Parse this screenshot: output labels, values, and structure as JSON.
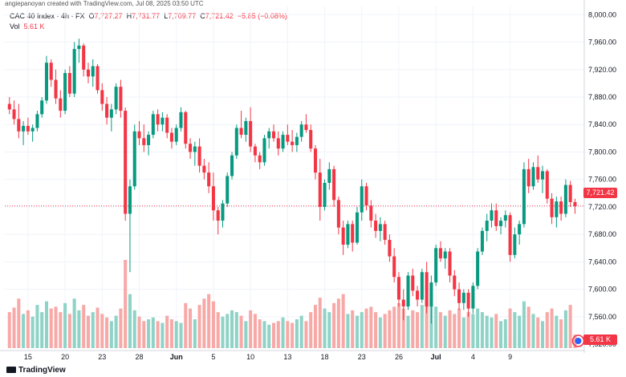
{
  "credit": "angiepanoyan created with TradingView.com, Jul 08, 2025 03:50 UTC",
  "legend": {
    "symbol": "CAC 40 Index · 4h · FX",
    "open_label": "O",
    "open": "7,727.27",
    "high_label": "H",
    "high": "7,731.77",
    "low_label": "L",
    "low": "7,709.77",
    "close_label": "C",
    "close": "7,721.42",
    "change": "−5.85 (−0.08%)",
    "vol_label": "Vol",
    "vol": "5.61 K"
  },
  "price_tag": "7,721.42",
  "vol_tag": "5.61 K",
  "watermark": "TradingView",
  "colors": {
    "up": "#089981",
    "down": "#f23645",
    "up_vol": "#8fd3c7",
    "down_vol": "#f7a9a7"
  },
  "chart_data": {
    "type": "candlestick",
    "title": "CAC 40 Index · 4h · FX",
    "ylim": [
      7512,
      8012
    ],
    "y_ticks": [
      "8,000.00",
      "7,960.00",
      "7,920.00",
      "7,880.00",
      "7,840.00",
      "7,800.00",
      "7,760.00",
      "7,720.00",
      "7,680.00",
      "7,640.00",
      "7,600.00",
      "7,560.00",
      "7,520.00"
    ],
    "y_tick_values": [
      8000,
      7960,
      7920,
      7880,
      7840,
      7800,
      7760,
      7720,
      7680,
      7640,
      7600,
      7560,
      7520
    ],
    "x_tick_labels": [
      "15",
      "20",
      "23",
      "28",
      "Jun",
      "5",
      "10",
      "13",
      "18",
      "23",
      "26",
      "Jul",
      "4",
      "9"
    ],
    "x_tick_index": [
      4,
      12,
      20,
      28,
      36,
      44,
      52,
      60,
      68,
      76,
      84,
      92,
      100,
      108
    ],
    "last_price": 7721.42,
    "candles": [
      {
        "o": 7870,
        "h": 7880,
        "l": 7855,
        "c": 7862,
        "v": 40
      },
      {
        "o": 7862,
        "h": 7875,
        "l": 7840,
        "c": 7848,
        "v": 45
      },
      {
        "o": 7848,
        "h": 7870,
        "l": 7820,
        "c": 7830,
        "v": 55
      },
      {
        "o": 7830,
        "h": 7845,
        "l": 7810,
        "c": 7838,
        "v": 38
      },
      {
        "o": 7838,
        "h": 7850,
        "l": 7825,
        "c": 7830,
        "v": 42
      },
      {
        "o": 7830,
        "h": 7840,
        "l": 7815,
        "c": 7835,
        "v": 35
      },
      {
        "o": 7835,
        "h": 7860,
        "l": 7830,
        "c": 7855,
        "v": 48
      },
      {
        "o": 7855,
        "h": 7880,
        "l": 7850,
        "c": 7875,
        "v": 40
      },
      {
        "o": 7875,
        "h": 7940,
        "l": 7870,
        "c": 7930,
        "v": 52
      },
      {
        "o": 7930,
        "h": 7935,
        "l": 7895,
        "c": 7905,
        "v": 44
      },
      {
        "o": 7905,
        "h": 7920,
        "l": 7870,
        "c": 7878,
        "v": 46
      },
      {
        "o": 7878,
        "h": 7890,
        "l": 7850,
        "c": 7860,
        "v": 40
      },
      {
        "o": 7860,
        "h": 7920,
        "l": 7855,
        "c": 7915,
        "v": 50
      },
      {
        "o": 7915,
        "h": 7925,
        "l": 7880,
        "c": 7885,
        "v": 38
      },
      {
        "o": 7885,
        "h": 7960,
        "l": 7880,
        "c": 7950,
        "v": 55
      },
      {
        "o": 7950,
        "h": 7965,
        "l": 7930,
        "c": 7955,
        "v": 42
      },
      {
        "o": 7955,
        "h": 7958,
        "l": 7910,
        "c": 7920,
        "v": 48
      },
      {
        "o": 7920,
        "h": 7930,
        "l": 7900,
        "c": 7910,
        "v": 36
      },
      {
        "o": 7910,
        "h": 7935,
        "l": 7895,
        "c": 7925,
        "v": 40
      },
      {
        "o": 7925,
        "h": 7928,
        "l": 7885,
        "c": 7890,
        "v": 45
      },
      {
        "o": 7890,
        "h": 7900,
        "l": 7860,
        "c": 7870,
        "v": 38
      },
      {
        "o": 7870,
        "h": 7880,
        "l": 7840,
        "c": 7850,
        "v": 34
      },
      {
        "o": 7850,
        "h": 7870,
        "l": 7830,
        "c": 7862,
        "v": 30
      },
      {
        "o": 7862,
        "h": 7900,
        "l": 7855,
        "c": 7895,
        "v": 36
      },
      {
        "o": 7895,
        "h": 7905,
        "l": 7850,
        "c": 7860,
        "v": 44
      },
      {
        "o": 7860,
        "h": 7865,
        "l": 7700,
        "c": 7710,
        "v": 98
      },
      {
        "o": 7710,
        "h": 7760,
        "l": 7625,
        "c": 7750,
        "v": 60
      },
      {
        "o": 7750,
        "h": 7840,
        "l": 7745,
        "c": 7830,
        "v": 42
      },
      {
        "o": 7830,
        "h": 7845,
        "l": 7810,
        "c": 7820,
        "v": 35
      },
      {
        "o": 7820,
        "h": 7840,
        "l": 7800,
        "c": 7810,
        "v": 30
      },
      {
        "o": 7810,
        "h": 7830,
        "l": 7795,
        "c": 7825,
        "v": 32
      },
      {
        "o": 7825,
        "h": 7860,
        "l": 7820,
        "c": 7855,
        "v": 34
      },
      {
        "o": 7855,
        "h": 7862,
        "l": 7830,
        "c": 7840,
        "v": 30
      },
      {
        "o": 7840,
        "h": 7858,
        "l": 7830,
        "c": 7850,
        "v": 28
      },
      {
        "o": 7850,
        "h": 7855,
        "l": 7820,
        "c": 7828,
        "v": 36
      },
      {
        "o": 7828,
        "h": 7835,
        "l": 7805,
        "c": 7815,
        "v": 32
      },
      {
        "o": 7815,
        "h": 7840,
        "l": 7810,
        "c": 7835,
        "v": 30
      },
      {
        "o": 7835,
        "h": 7865,
        "l": 7830,
        "c": 7858,
        "v": 28
      },
      {
        "o": 7858,
        "h": 7860,
        "l": 7805,
        "c": 7812,
        "v": 50
      },
      {
        "o": 7812,
        "h": 7820,
        "l": 7790,
        "c": 7800,
        "v": 44
      },
      {
        "o": 7800,
        "h": 7815,
        "l": 7780,
        "c": 7808,
        "v": 32
      },
      {
        "o": 7808,
        "h": 7820,
        "l": 7770,
        "c": 7780,
        "v": 48
      },
      {
        "o": 7780,
        "h": 7790,
        "l": 7760,
        "c": 7770,
        "v": 55
      },
      {
        "o": 7770,
        "h": 7785,
        "l": 7740,
        "c": 7750,
        "v": 60
      },
      {
        "o": 7750,
        "h": 7770,
        "l": 7700,
        "c": 7715,
        "v": 52
      },
      {
        "o": 7715,
        "h": 7720,
        "l": 7680,
        "c": 7700,
        "v": 40
      },
      {
        "o": 7700,
        "h": 7730,
        "l": 7690,
        "c": 7725,
        "v": 35
      },
      {
        "o": 7725,
        "h": 7770,
        "l": 7720,
        "c": 7765,
        "v": 38
      },
      {
        "o": 7765,
        "h": 7800,
        "l": 7760,
        "c": 7795,
        "v": 42
      },
      {
        "o": 7795,
        "h": 7840,
        "l": 7790,
        "c": 7835,
        "v": 40
      },
      {
        "o": 7835,
        "h": 7860,
        "l": 7820,
        "c": 7825,
        "v": 36
      },
      {
        "o": 7825,
        "h": 7850,
        "l": 7815,
        "c": 7845,
        "v": 30
      },
      {
        "o": 7845,
        "h": 7865,
        "l": 7800,
        "c": 7808,
        "v": 42
      },
      {
        "o": 7808,
        "h": 7812,
        "l": 7785,
        "c": 7795,
        "v": 38
      },
      {
        "o": 7795,
        "h": 7800,
        "l": 7775,
        "c": 7785,
        "v": 32
      },
      {
        "o": 7785,
        "h": 7825,
        "l": 7780,
        "c": 7820,
        "v": 30
      },
      {
        "o": 7820,
        "h": 7835,
        "l": 7805,
        "c": 7830,
        "v": 26
      },
      {
        "o": 7830,
        "h": 7840,
        "l": 7815,
        "c": 7820,
        "v": 28
      },
      {
        "o": 7820,
        "h": 7830,
        "l": 7795,
        "c": 7805,
        "v": 30
      },
      {
        "o": 7805,
        "h": 7830,
        "l": 7800,
        "c": 7825,
        "v": 34
      },
      {
        "o": 7825,
        "h": 7840,
        "l": 7810,
        "c": 7815,
        "v": 30
      },
      {
        "o": 7815,
        "h": 7832,
        "l": 7800,
        "c": 7810,
        "v": 28
      },
      {
        "o": 7810,
        "h": 7828,
        "l": 7800,
        "c": 7822,
        "v": 32
      },
      {
        "o": 7822,
        "h": 7845,
        "l": 7815,
        "c": 7840,
        "v": 36
      },
      {
        "o": 7840,
        "h": 7855,
        "l": 7828,
        "c": 7832,
        "v": 30
      },
      {
        "o": 7832,
        "h": 7840,
        "l": 7800,
        "c": 7805,
        "v": 40
      },
      {
        "o": 7805,
        "h": 7810,
        "l": 7760,
        "c": 7770,
        "v": 48
      },
      {
        "o": 7770,
        "h": 7790,
        "l": 7700,
        "c": 7720,
        "v": 56
      },
      {
        "o": 7720,
        "h": 7760,
        "l": 7715,
        "c": 7755,
        "v": 44
      },
      {
        "o": 7755,
        "h": 7785,
        "l": 7745,
        "c": 7775,
        "v": 40
      },
      {
        "o": 7775,
        "h": 7780,
        "l": 7720,
        "c": 7730,
        "v": 50
      },
      {
        "o": 7730,
        "h": 7735,
        "l": 7680,
        "c": 7690,
        "v": 55
      },
      {
        "o": 7690,
        "h": 7700,
        "l": 7650,
        "c": 7665,
        "v": 60
      },
      {
        "o": 7665,
        "h": 7700,
        "l": 7660,
        "c": 7695,
        "v": 38
      },
      {
        "o": 7695,
        "h": 7700,
        "l": 7655,
        "c": 7668,
        "v": 42
      },
      {
        "o": 7668,
        "h": 7720,
        "l": 7665,
        "c": 7712,
        "v": 36
      },
      {
        "o": 7712,
        "h": 7760,
        "l": 7700,
        "c": 7750,
        "v": 40
      },
      {
        "o": 7750,
        "h": 7755,
        "l": 7715,
        "c": 7722,
        "v": 44
      },
      {
        "o": 7722,
        "h": 7730,
        "l": 7690,
        "c": 7700,
        "v": 46
      },
      {
        "o": 7700,
        "h": 7710,
        "l": 7675,
        "c": 7685,
        "v": 40
      },
      {
        "o": 7685,
        "h": 7705,
        "l": 7670,
        "c": 7695,
        "v": 34
      },
      {
        "o": 7695,
        "h": 7700,
        "l": 7665,
        "c": 7672,
        "v": 38
      },
      {
        "o": 7672,
        "h": 7680,
        "l": 7640,
        "c": 7648,
        "v": 42
      },
      {
        "o": 7648,
        "h": 7660,
        "l": 7610,
        "c": 7618,
        "v": 46
      },
      {
        "o": 7618,
        "h": 7625,
        "l": 7575,
        "c": 7585,
        "v": 50
      },
      {
        "o": 7585,
        "h": 7600,
        "l": 7555,
        "c": 7575,
        "v": 44
      },
      {
        "o": 7575,
        "h": 7625,
        "l": 7570,
        "c": 7620,
        "v": 36
      },
      {
        "o": 7620,
        "h": 7630,
        "l": 7590,
        "c": 7598,
        "v": 42
      },
      {
        "o": 7598,
        "h": 7605,
        "l": 7575,
        "c": 7585,
        "v": 40
      },
      {
        "o": 7585,
        "h": 7630,
        "l": 7580,
        "c": 7625,
        "v": 48
      },
      {
        "o": 7625,
        "h": 7640,
        "l": 7565,
        "c": 7575,
        "v": 55
      },
      {
        "o": 7575,
        "h": 7620,
        "l": 7550,
        "c": 7610,
        "v": 60
      },
      {
        "o": 7610,
        "h": 7665,
        "l": 7605,
        "c": 7660,
        "v": 46
      },
      {
        "o": 7660,
        "h": 7670,
        "l": 7640,
        "c": 7645,
        "v": 40
      },
      {
        "o": 7645,
        "h": 7660,
        "l": 7630,
        "c": 7655,
        "v": 36
      },
      {
        "o": 7655,
        "h": 7660,
        "l": 7610,
        "c": 7620,
        "v": 42
      },
      {
        "o": 7620,
        "h": 7628,
        "l": 7590,
        "c": 7600,
        "v": 38
      },
      {
        "o": 7600,
        "h": 7610,
        "l": 7570,
        "c": 7580,
        "v": 44
      },
      {
        "o": 7580,
        "h": 7600,
        "l": 7570,
        "c": 7595,
        "v": 34
      },
      {
        "o": 7595,
        "h": 7600,
        "l": 7560,
        "c": 7572,
        "v": 40
      },
      {
        "o": 7572,
        "h": 7610,
        "l": 7565,
        "c": 7605,
        "v": 38
      },
      {
        "o": 7605,
        "h": 7660,
        "l": 7600,
        "c": 7655,
        "v": 44
      },
      {
        "o": 7655,
        "h": 7690,
        "l": 7650,
        "c": 7685,
        "v": 40
      },
      {
        "o": 7685,
        "h": 7710,
        "l": 7670,
        "c": 7700,
        "v": 36
      },
      {
        "o": 7700,
        "h": 7725,
        "l": 7690,
        "c": 7715,
        "v": 34
      },
      {
        "o": 7715,
        "h": 7725,
        "l": 7685,
        "c": 7692,
        "v": 38
      },
      {
        "o": 7692,
        "h": 7705,
        "l": 7680,
        "c": 7700,
        "v": 30
      },
      {
        "o": 7700,
        "h": 7715,
        "l": 7690,
        "c": 7708,
        "v": 32
      },
      {
        "o": 7708,
        "h": 7712,
        "l": 7640,
        "c": 7650,
        "v": 44
      },
      {
        "o": 7650,
        "h": 7690,
        "l": 7645,
        "c": 7680,
        "v": 40
      },
      {
        "o": 7680,
        "h": 7700,
        "l": 7665,
        "c": 7695,
        "v": 36
      },
      {
        "o": 7695,
        "h": 7785,
        "l": 7690,
        "c": 7775,
        "v": 52
      },
      {
        "o": 7775,
        "h": 7790,
        "l": 7740,
        "c": 7750,
        "v": 46
      },
      {
        "o": 7750,
        "h": 7785,
        "l": 7745,
        "c": 7778,
        "v": 38
      },
      {
        "o": 7778,
        "h": 7795,
        "l": 7755,
        "c": 7760,
        "v": 34
      },
      {
        "o": 7760,
        "h": 7780,
        "l": 7740,
        "c": 7772,
        "v": 30
      },
      {
        "o": 7772,
        "h": 7775,
        "l": 7725,
        "c": 7732,
        "v": 40
      },
      {
        "o": 7732,
        "h": 7740,
        "l": 7695,
        "c": 7705,
        "v": 44
      },
      {
        "o": 7705,
        "h": 7735,
        "l": 7690,
        "c": 7728,
        "v": 36
      },
      {
        "o": 7728,
        "h": 7735,
        "l": 7700,
        "c": 7710,
        "v": 32
      },
      {
        "o": 7710,
        "h": 7760,
        "l": 7705,
        "c": 7752,
        "v": 42
      },
      {
        "o": 7752,
        "h": 7758,
        "l": 7720,
        "c": 7727,
        "v": 48
      },
      {
        "o": 7727,
        "h": 7732,
        "l": 7710,
        "c": 7721,
        "v": 15
      }
    ]
  }
}
